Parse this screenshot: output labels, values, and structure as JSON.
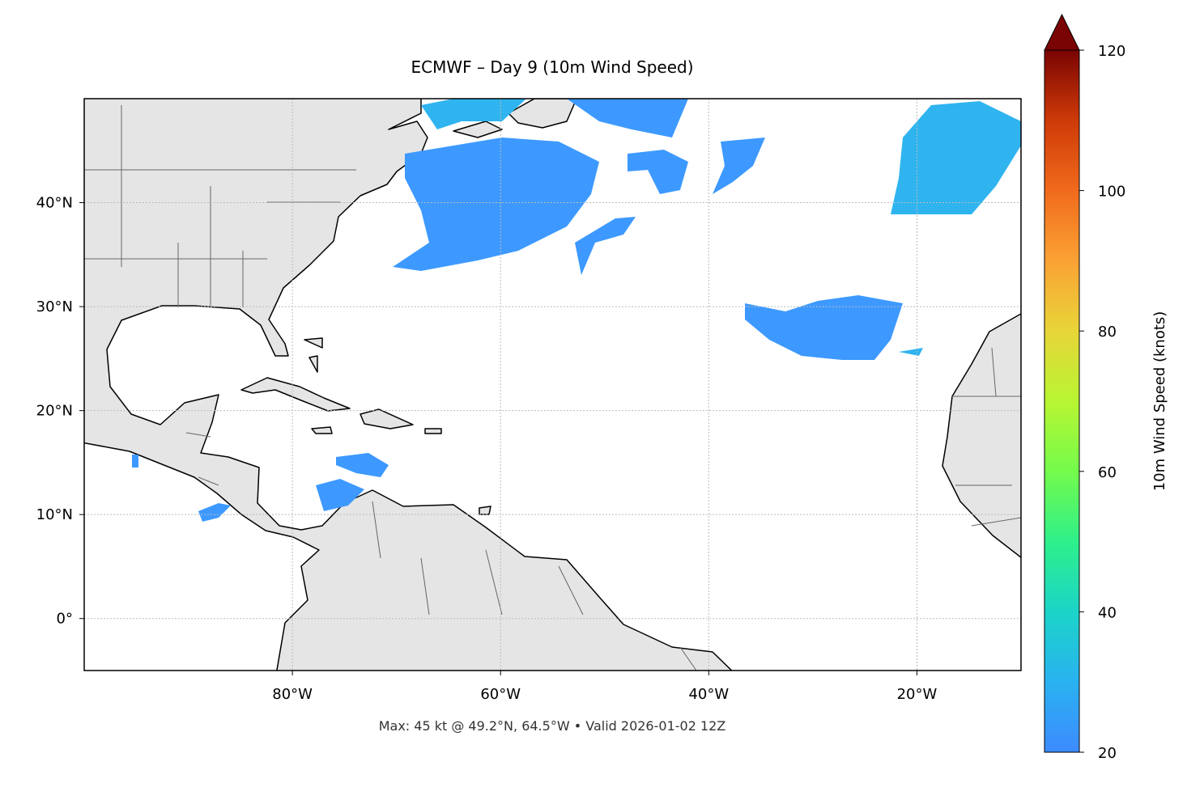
{
  "map": {
    "title": "ECMWF – Day 9 (10m Wind Speed)",
    "footer": "Max: 45 kt @ 49.2°N, 64.5°W • Valid 2026-01-02 12Z",
    "xlim": [
      -100,
      -10
    ],
    "ylim": [
      -5,
      50
    ],
    "xticks": [
      {
        "value": -80,
        "label": "80°W"
      },
      {
        "value": -60,
        "label": "60°W"
      },
      {
        "value": -40,
        "label": "40°W"
      },
      {
        "value": -20,
        "label": "20°W"
      }
    ],
    "yticks": [
      {
        "value": 0,
        "label": "0°"
      },
      {
        "value": 10,
        "label": "10°N"
      },
      {
        "value": 20,
        "label": "20°N"
      },
      {
        "value": 30,
        "label": "30°N"
      },
      {
        "value": 40,
        "label": "40°N"
      }
    ],
    "grid": true
  },
  "colorbar": {
    "label": "10m Wind Speed (knots)",
    "lim": [
      20,
      120
    ],
    "ticks": [
      20,
      40,
      60,
      80,
      100,
      120
    ]
  }
}
